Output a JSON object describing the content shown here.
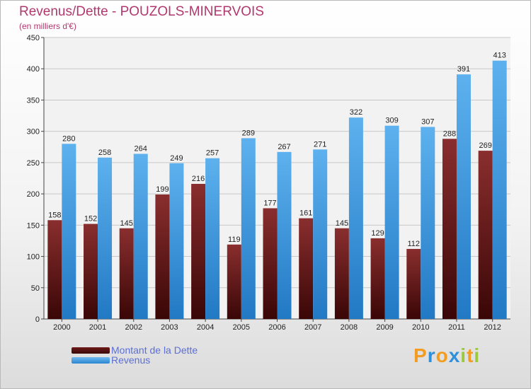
{
  "chart_data": {
    "type": "bar",
    "title": "Revenus/Dette - POUZOLS-MINERVOIS",
    "subtitle": "(en milliers d'€)",
    "categories": [
      "2000",
      "2001",
      "2002",
      "2003",
      "2004",
      "2005",
      "2006",
      "2007",
      "2008",
      "2009",
      "2010",
      "2011",
      "2012"
    ],
    "series": [
      {
        "name": "Montant de la Dette",
        "color": "#6e1a1a",
        "values": [
          158,
          152,
          145,
          199,
          216,
          119,
          177,
          161,
          145,
          129,
          112,
          288,
          269
        ]
      },
      {
        "name": "Revenus",
        "color": "#3b9ee6",
        "values": [
          280,
          258,
          264,
          249,
          257,
          289,
          267,
          271,
          322,
          309,
          307,
          391,
          413
        ]
      }
    ],
    "ylim": [
      0,
      450
    ],
    "yticks": [
      0,
      50,
      100,
      150,
      200,
      250,
      300,
      350,
      400,
      450
    ],
    "grid": true,
    "legend_position": "bottom-left"
  },
  "logo": {
    "letters": [
      "P",
      "r",
      "o",
      "x",
      "i",
      "t",
      "i"
    ],
    "colors": [
      "#f39c22",
      "#2f8fd8",
      "#f39c22",
      "#2f8fd8",
      "#9bc93b",
      "#f39c22",
      "#9bc93b"
    ]
  }
}
